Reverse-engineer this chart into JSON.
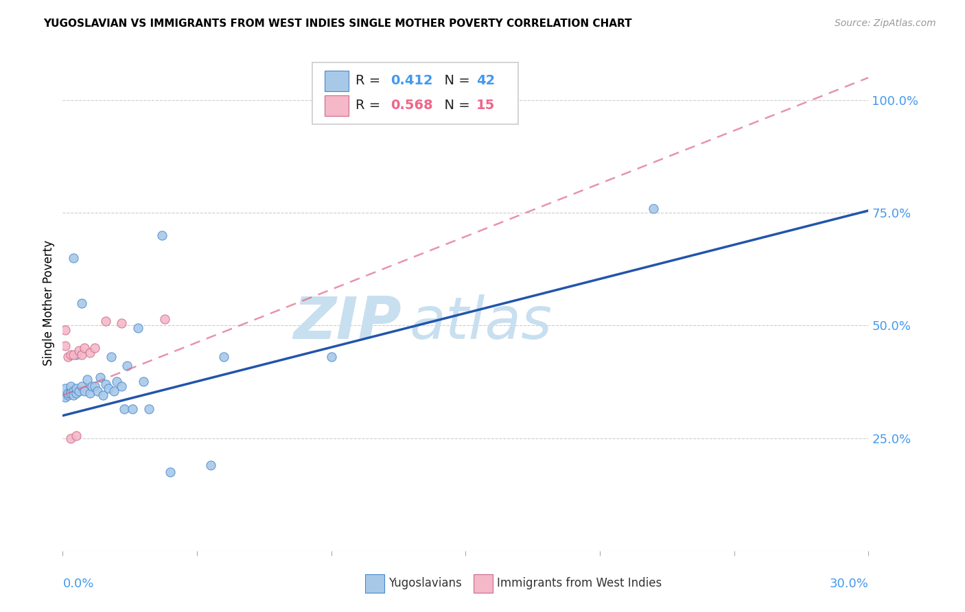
{
  "title": "YUGOSLAVIAN VS IMMIGRANTS FROM WEST INDIES SINGLE MOTHER POVERTY CORRELATION CHART",
  "source": "Source: ZipAtlas.com",
  "ylabel": "Single Mother Poverty",
  "ytick_vals": [
    0.25,
    0.5,
    0.75,
    1.0
  ],
  "ytick_labels": [
    "25.0%",
    "50.0%",
    "75.0%",
    "100.0%"
  ],
  "xlim": [
    0.0,
    0.3
  ],
  "ylim": [
    0.0,
    1.1
  ],
  "blue_color": "#a8c8e8",
  "pink_color": "#f4b8c8",
  "blue_edge_color": "#4488cc",
  "pink_edge_color": "#cc6688",
  "blue_line_color": "#2255aa",
  "pink_line_color": "#dd6688",
  "watermark_zip_color": "#c8dff0",
  "watermark_atlas_color": "#c8dff0",
  "blue_x": [
    0.001,
    0.001,
    0.002,
    0.002,
    0.003,
    0.003,
    0.003,
    0.004,
    0.004,
    0.005,
    0.005,
    0.005,
    0.006,
    0.007,
    0.007,
    0.008,
    0.009,
    0.01,
    0.011,
    0.012,
    0.013,
    0.014,
    0.015,
    0.016,
    0.017,
    0.018,
    0.019,
    0.02,
    0.022,
    0.023,
    0.024,
    0.026,
    0.028,
    0.03,
    0.032,
    0.037,
    0.04,
    0.055,
    0.06,
    0.1,
    0.22,
    0.004
  ],
  "blue_y": [
    0.34,
    0.36,
    0.345,
    0.35,
    0.355,
    0.365,
    0.35,
    0.355,
    0.345,
    0.35,
    0.435,
    0.36,
    0.355,
    0.55,
    0.365,
    0.355,
    0.38,
    0.35,
    0.365,
    0.365,
    0.355,
    0.385,
    0.345,
    0.37,
    0.36,
    0.43,
    0.355,
    0.375,
    0.365,
    0.315,
    0.41,
    0.315,
    0.495,
    0.375,
    0.315,
    0.7,
    0.175,
    0.19,
    0.43,
    0.43,
    0.76,
    0.65
  ],
  "pink_x": [
    0.001,
    0.001,
    0.002,
    0.003,
    0.003,
    0.004,
    0.005,
    0.006,
    0.007,
    0.008,
    0.01,
    0.012,
    0.016,
    0.022,
    0.038
  ],
  "pink_y": [
    0.49,
    0.455,
    0.43,
    0.435,
    0.25,
    0.435,
    0.255,
    0.445,
    0.435,
    0.45,
    0.44,
    0.45,
    0.51,
    0.505,
    0.515
  ],
  "blue_trend_x0": 0.0,
  "blue_trend_y0": 0.3,
  "blue_trend_x1": 0.3,
  "blue_trend_y1": 0.755,
  "pink_trend_x0": 0.0,
  "pink_trend_y0": 0.345,
  "pink_trend_x1": 0.3,
  "pink_trend_y1": 1.05,
  "legend_r1": "0.412",
  "legend_n1": "42",
  "legend_r2": "0.568",
  "legend_n2": "15",
  "blue_value_color": "#4499ee",
  "pink_value_color": "#ee6688"
}
